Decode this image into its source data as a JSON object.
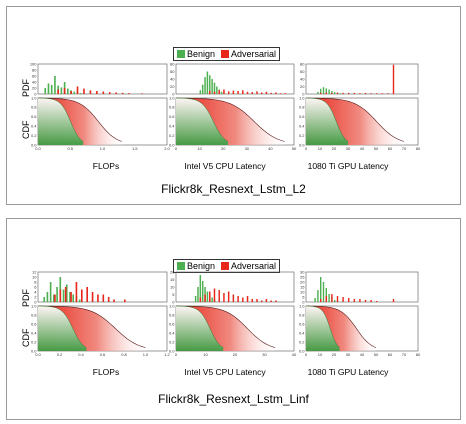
{
  "colors": {
    "benign": "#4caf50",
    "adversarial": "#e8261a",
    "curve": "#5a1a1a"
  },
  "legend": {
    "benign": "Benign",
    "adversarial": "Adversarial"
  },
  "axis_labels": {
    "pdf": "PDF",
    "cdf": "CDF"
  },
  "chart_data": [
    {
      "type": "histogram+cdf",
      "title": "Flickr8k_Resnext_Lstm_L2",
      "subplots": [
        {
          "xlabel": "FLOPs",
          "xlim": [
            0,
            2.0
          ],
          "xticks": [
            "0.0",
            "0.5",
            "1.0",
            "1.5",
            "2.0"
          ],
          "pdf_yticks": [
            "0",
            "20",
            "40",
            "60",
            "80",
            "100"
          ],
          "pdf_ylim": [
            0,
            100
          ],
          "cdf_yticks": [
            "0.0",
            "0.2",
            "0.4",
            "0.6",
            "0.8",
            "1.0"
          ],
          "benign_hist": {
            "bins": [
              0.1,
              0.15,
              0.2,
              0.25,
              0.3,
              0.35,
              0.4,
              0.45,
              0.5,
              0.55,
              0.6,
              0.65,
              0.7
            ],
            "counts": [
              20,
              35,
              30,
              60,
              28,
              22,
              40,
              18,
              12,
              8,
              5,
              3,
              2
            ]
          },
          "adv_hist": {
            "bins": [
              0.3,
              0.4,
              0.5,
              0.6,
              0.7,
              0.8,
              0.9,
              1.0,
              1.1,
              1.2,
              1.3,
              1.4,
              1.6
            ],
            "counts": [
              15,
              20,
              10,
              25,
              18,
              12,
              10,
              8,
              6,
              5,
              4,
              3,
              2
            ]
          },
          "benign_cdf_end": 0.7,
          "adv_cdf_end": 1.3
        },
        {
          "xlabel": "Intel V5 CPU Latency",
          "xlim": [
            0,
            50
          ],
          "xticks": [
            "0",
            "10",
            "20",
            "30",
            "40",
            "50"
          ],
          "pdf_yticks": [
            "0",
            "20",
            "40",
            "60",
            "80"
          ],
          "pdf_ylim": [
            0,
            80
          ],
          "cdf_yticks": [
            "0.0",
            "0.2",
            "0.4",
            "0.6",
            "0.8",
            "1.0"
          ],
          "benign_hist": {
            "bins": [
              10,
              11,
              12,
              13,
              14,
              15,
              16,
              17,
              18,
              19,
              20
            ],
            "counts": [
              10,
              25,
              45,
              60,
              50,
              40,
              30,
              20,
              12,
              6,
              3
            ]
          },
          "adv_hist": {
            "bins": [
              14,
              16,
              18,
              20,
              22,
              24,
              26,
              28,
              30,
              32,
              34,
              36,
              38,
              40,
              42,
              44,
              46
            ],
            "counts": [
              8,
              6,
              10,
              12,
              7,
              9,
              8,
              10,
              6,
              5,
              7,
              4,
              6,
              3,
              4,
              2,
              2
            ]
          },
          "benign_cdf_end": 22,
          "adv_cdf_end": 46
        },
        {
          "xlabel": "1080 Ti GPU Latency",
          "xlim": [
            0,
            80
          ],
          "xticks": [
            "0",
            "10",
            "20",
            "30",
            "40",
            "50",
            "60",
            "70",
            "80"
          ],
          "pdf_yticks": [
            "0",
            "20",
            "40",
            "60",
            "80"
          ],
          "pdf_ylim": [
            0,
            80
          ],
          "cdf_yticks": [
            "0.0",
            "0.2",
            "0.4",
            "0.6",
            "0.8",
            "1.0"
          ],
          "benign_hist": {
            "bins": [
              8,
              10,
              12,
              14,
              16,
              18,
              20,
              22,
              24
            ],
            "counts": [
              6,
              14,
              18,
              15,
              12,
              8,
              5,
              3,
              2
            ]
          },
          "adv_hist": {
            "bins": [
              10,
              14,
              18,
              22,
              26,
              30,
              34,
              38,
              42,
              46,
              50,
              54,
              58,
              62
            ],
            "counts": [
              3,
              4,
              3,
              4,
              3,
              3,
              3,
              2,
              3,
              2,
              2,
              2,
              2,
              78
            ]
          },
          "benign_cdf_end": 30,
          "adv_cdf_end": 70
        }
      ]
    },
    {
      "type": "histogram+cdf",
      "title": "Flickr8k_Resnext_Lstm_Linf",
      "subplots": [
        {
          "xlabel": "FLOPs",
          "xlim": [
            0,
            1.2
          ],
          "xticks": [
            "0.0",
            "0.2",
            "0.4",
            "0.6",
            "0.8",
            "1.0",
            "1.2"
          ],
          "pdf_yticks": [
            "0",
            "2",
            "4",
            "6",
            "8",
            "10",
            "12"
          ],
          "pdf_ylim": [
            0,
            12
          ],
          "cdf_yticks": [
            "0.0",
            "0.2",
            "0.4",
            "0.6",
            "0.8",
            "1.0"
          ],
          "benign_hist": {
            "bins": [
              0.05,
              0.08,
              0.11,
              0.14,
              0.17,
              0.2,
              0.23,
              0.26,
              0.29,
              0.32,
              0.35,
              0.38
            ],
            "counts": [
              2,
              4,
              8,
              3,
              6,
              10,
              5,
              7,
              4,
              3,
              2,
              1
            ]
          },
          "adv_hist": {
            "bins": [
              0.15,
              0.2,
              0.25,
              0.3,
              0.35,
              0.4,
              0.45,
              0.5,
              0.55,
              0.6,
              0.65,
              0.7,
              0.8
            ],
            "counts": [
              3,
              5,
              6,
              4,
              8,
              5,
              6,
              4,
              3,
              3,
              2,
              1,
              1
            ]
          },
          "benign_cdf_end": 0.45,
          "adv_cdf_end": 1.0
        },
        {
          "xlabel": "Intel V5 CPU Latency",
          "xlim": [
            0,
            50
          ],
          "xticks": [
            "0",
            "10",
            "20",
            "30",
            "40"
          ],
          "pdf_yticks": [
            "0",
            "5",
            "10",
            "15",
            "20"
          ],
          "pdf_ylim": [
            0,
            20
          ],
          "cdf_yticks": [
            "0.0",
            "0.2",
            "0.4",
            "0.6",
            "0.8",
            "1.0"
          ],
          "benign_hist": {
            "bins": [
              8,
              9,
              10,
              11,
              12,
              13,
              14,
              15,
              16
            ],
            "counts": [
              4,
              10,
              18,
              14,
              10,
              7,
              5,
              3,
              2
            ]
          },
          "adv_hist": {
            "bins": [
              10,
              12,
              14,
              16,
              18,
              20,
              22,
              24,
              26,
              28,
              30,
              32,
              34,
              36,
              38,
              40,
              42
            ],
            "counts": [
              3,
              5,
              7,
              9,
              8,
              6,
              7,
              5,
              4,
              3,
              4,
              2,
              2,
              1,
              2,
              1,
              1
            ]
          },
          "benign_cdf_end": 20,
          "adv_cdf_end": 42
        },
        {
          "xlabel": "1080 Ti GPU Latency",
          "xlim": [
            0,
            80
          ],
          "xticks": [
            "0",
            "10",
            "20",
            "30",
            "40",
            "50",
            "60",
            "70",
            "80"
          ],
          "pdf_yticks": [
            "0",
            "5",
            "10",
            "15",
            "20",
            "25",
            "30"
          ],
          "pdf_ylim": [
            0,
            30
          ],
          "cdf_yticks": [
            "0.0",
            "0.2",
            "0.4",
            "0.6",
            "0.8",
            "1.0"
          ],
          "benign_hist": {
            "bins": [
              6,
              8,
              10,
              12,
              14,
              16,
              18,
              20
            ],
            "counts": [
              4,
              12,
              25,
              20,
              14,
              8,
              5,
              2
            ]
          },
          "adv_hist": {
            "bins": [
              10,
              14,
              18,
              22,
              26,
              30,
              34,
              38,
              42,
              46,
              50,
              62
            ],
            "counts": [
              3,
              6,
              8,
              6,
              5,
              4,
              3,
              3,
              2,
              2,
              1,
              3
            ]
          },
          "benign_cdf_end": 24,
          "adv_cdf_end": 50
        }
      ]
    }
  ]
}
